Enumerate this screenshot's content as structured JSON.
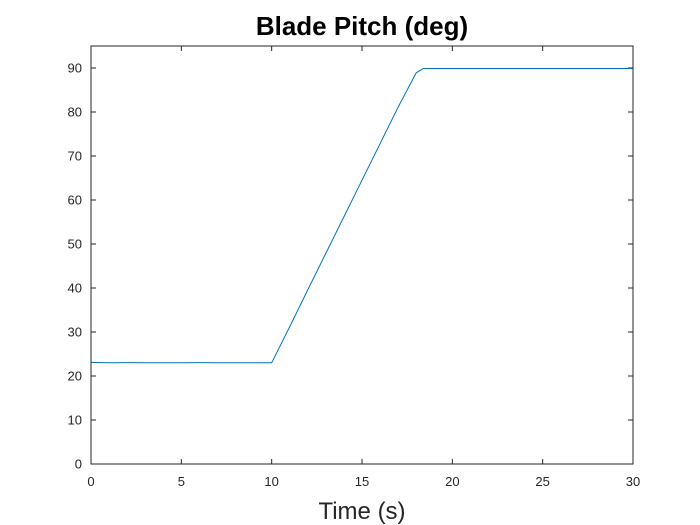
{
  "chart_data": {
    "type": "line",
    "title": "Blade Pitch (deg)",
    "xlabel": "Time (s)",
    "ylabel": "",
    "xlim": [
      0,
      30
    ],
    "ylim": [
      0,
      95
    ],
    "xticks": [
      0,
      5,
      10,
      15,
      20,
      25,
      30
    ],
    "yticks": [
      0,
      10,
      20,
      30,
      40,
      50,
      60,
      70,
      80,
      90
    ],
    "grid": false,
    "legend": "none",
    "series": [
      {
        "color": "#0072bd",
        "x": [
          0,
          1,
          2,
          3,
          4,
          5,
          6,
          7,
          8,
          9,
          10,
          11,
          12,
          13,
          14,
          15,
          16,
          17,
          18,
          18.4,
          19,
          20,
          22,
          24,
          26,
          28,
          30
        ],
        "y": [
          23.1,
          23.0,
          23.05,
          23.0,
          23.02,
          23.0,
          23.03,
          23.0,
          23.02,
          23.0,
          23.0,
          31.2,
          39.6,
          47.9,
          56.2,
          64.5,
          72.8,
          81.1,
          88.9,
          89.9,
          89.9,
          89.9,
          89.9,
          89.9,
          89.9,
          89.9,
          89.9
        ]
      }
    ]
  }
}
